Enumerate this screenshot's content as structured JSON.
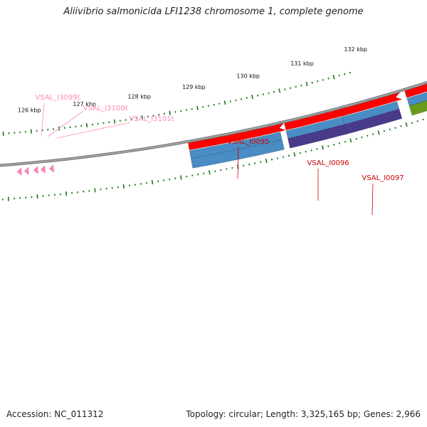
{
  "title": "Aliivibrio salmonicida LFI1238 chromosome 1, complete genome",
  "footer": {
    "accession": "Accession: NC_011312",
    "summary": "Topology: circular; Length: 3,325,165 bp; Genes: 2,966"
  },
  "colors": {
    "backbone": "#808080",
    "tick": "#1a7a1a",
    "cds": "#ff0000",
    "gene_blue": "#4a8cc4",
    "gene_purple": "#4a3a8a",
    "gene_green": "#6a9a1a",
    "gene_label": "#cc0000",
    "trna": "#ff88bb",
    "trna_label": "#ff88bb"
  },
  "scale_labels": [
    "126 kbp",
    "127 kbp",
    "128 kbp",
    "129 kbp",
    "130 kbp",
    "131 kbp",
    "132 kbp"
  ],
  "genes": [
    {
      "label": "VSAL_I0095",
      "color_key": "gene_blue"
    },
    {
      "label": "VSAL_I0096",
      "color_key": "gene_purple"
    },
    {
      "label": "VSAL_I0097",
      "color_key": "gene_purple"
    },
    {
      "label": "",
      "color_key": "gene_green"
    }
  ],
  "trnas": [
    {
      "label": "VSAL_I3099t"
    },
    {
      "label": "VSAL_I3100t"
    },
    {
      "label": "VSAL_I3101t"
    }
  ]
}
